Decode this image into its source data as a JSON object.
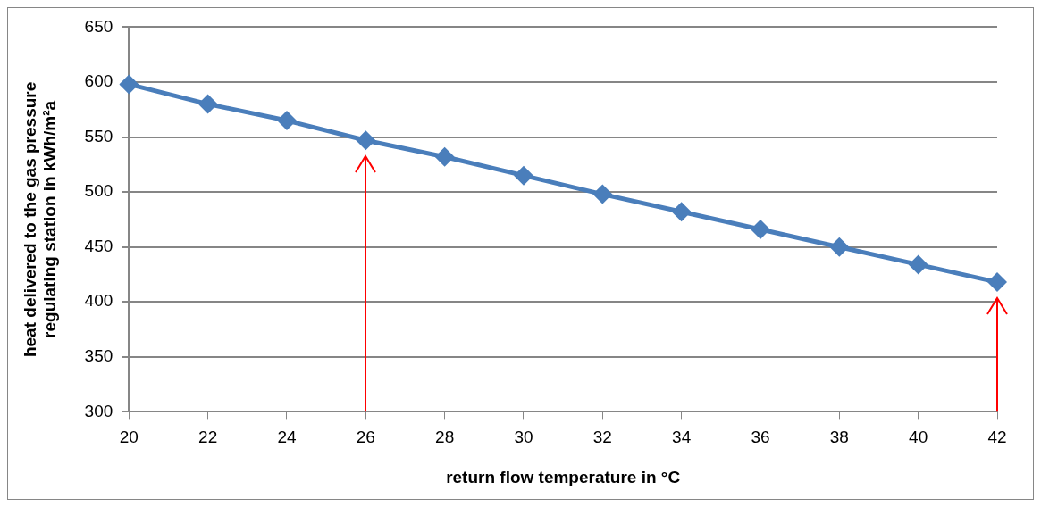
{
  "chart_data": {
    "type": "line",
    "xlabel": "return flow temperature in °C",
    "ylabel": "heat delivered to the gas pressure\nregulating station in kWh/m²a",
    "categories": [
      "20",
      "22",
      "24",
      "26",
      "28",
      "30",
      "32",
      "34",
      "36",
      "38",
      "40",
      "42"
    ],
    "series": [
      {
        "color": "#4a7ebb",
        "values": [
          598,
          580,
          565,
          547,
          532,
          515,
          498,
          482,
          466,
          450,
          434,
          418
        ]
      }
    ],
    "ylim": [
      300,
      650
    ],
    "yticks": [
      300,
      350,
      400,
      450,
      500,
      550,
      600,
      650
    ],
    "grid": "y",
    "legend": false,
    "marker": "diamond",
    "line_style": "solid",
    "ref_lines": [
      {
        "axis": "x",
        "value": "26",
        "color": "#ff0000"
      },
      {
        "axis": "x",
        "value": "42",
        "color": "#ff0000"
      }
    ]
  }
}
